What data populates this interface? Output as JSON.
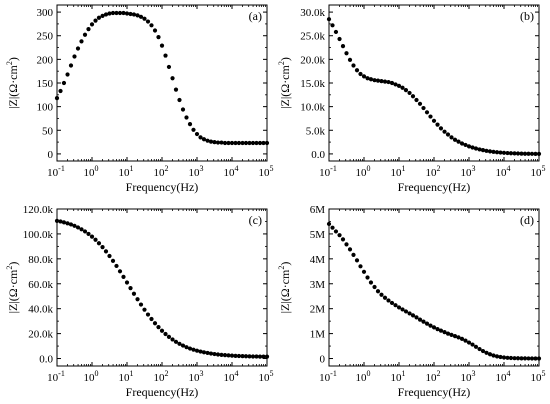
{
  "chart_data": [
    {
      "type": "scatter",
      "panel_label": "(a)",
      "xlabel": "Frequency(Hz)",
      "ylabel_main": "|Z|(Ω·cm",
      "ylabel_sup": "2",
      "ylabel_tail": ")",
      "x_scale": "log",
      "xlim": [
        0.1,
        100000
      ],
      "ylim": [
        -15,
        315
      ],
      "x_tick_values": [
        0.1,
        1,
        10,
        100,
        1000,
        10000,
        100000
      ],
      "x_tick_labels": [
        [
          "10",
          "-1"
        ],
        [
          "10",
          "0"
        ],
        [
          "10",
          "1"
        ],
        [
          "10",
          "2"
        ],
        [
          "10",
          "3"
        ],
        [
          "10",
          "4"
        ],
        [
          "10",
          "5"
        ]
      ],
      "y_tick_values": [
        0,
        50,
        100,
        150,
        200,
        250,
        300
      ],
      "y_tick_labels": [
        "0",
        "50",
        "100",
        "150",
        "200",
        "250",
        "300"
      ],
      "series": [
        {
          "x": [
            0.1,
            0.126,
            0.158,
            0.2,
            0.251,
            0.316,
            0.398,
            0.501,
            0.631,
            0.794,
            1,
            1.26,
            1.58,
            2,
            2.51,
            3.16,
            3.98,
            5.01,
            6.31,
            7.94,
            10,
            12.6,
            15.8,
            20,
            25.1,
            31.6,
            39.8,
            50.1,
            63.1,
            79.4,
            100,
            126,
            158,
            200,
            251,
            316,
            398,
            501,
            631,
            794,
            1000,
            1260,
            1580,
            2000,
            2510,
            3160,
            3980,
            5010,
            6310,
            7940,
            10000,
            12600,
            15800,
            20000,
            25100,
            31600,
            39800,
            50100,
            63100,
            79400,
            100000
          ],
          "y": [
            118,
            133,
            150,
            168,
            187,
            206,
            223,
            238,
            252,
            264,
            274,
            282,
            288,
            292,
            295,
            297,
            298,
            298,
            298,
            298,
            297,
            296,
            295,
            293,
            290,
            286,
            280,
            272,
            261,
            247,
            229,
            208,
            184,
            160,
            136,
            114,
            94,
            77,
            63,
            51,
            42,
            35,
            31,
            28,
            26,
            25,
            24,
            24,
            23,
            23,
            23,
            23,
            23,
            23,
            23,
            23,
            23,
            23,
            23,
            23,
            23
          ]
        }
      ]
    },
    {
      "type": "scatter",
      "panel_label": "(b)",
      "xlabel": "Frequency(Hz)",
      "ylabel_main": "|Z|(Ω·cm",
      "ylabel_sup": "2",
      "ylabel_tail": ")",
      "x_scale": "log",
      "xlim": [
        0.1,
        100000
      ],
      "ylim": [
        -1500,
        31500
      ],
      "x_tick_values": [
        0.1,
        1,
        10,
        100,
        1000,
        10000,
        100000
      ],
      "x_tick_labels": [
        [
          "10",
          "-1"
        ],
        [
          "10",
          "0"
        ],
        [
          "10",
          "1"
        ],
        [
          "10",
          "2"
        ],
        [
          "10",
          "3"
        ],
        [
          "10",
          "4"
        ],
        [
          "10",
          "5"
        ]
      ],
      "y_tick_values": [
        0,
        5000,
        10000,
        15000,
        20000,
        25000,
        30000
      ],
      "y_tick_labels": [
        "0.0",
        "5.0k",
        "10.0k",
        "15.0k",
        "20.0k",
        "25.0k",
        "30.0k"
      ],
      "series": [
        {
          "x": [
            0.1,
            0.126,
            0.158,
            0.2,
            0.251,
            0.316,
            0.398,
            0.501,
            0.631,
            0.794,
            1,
            1.26,
            1.58,
            2,
            2.51,
            3.16,
            3.98,
            5.01,
            6.31,
            7.94,
            10,
            12.6,
            15.8,
            20,
            25.1,
            31.6,
            39.8,
            50.1,
            63.1,
            79.4,
            100,
            126,
            158,
            200,
            251,
            316,
            398,
            501,
            631,
            794,
            1000,
            1260,
            1580,
            2000,
            2510,
            3160,
            3980,
            5010,
            6310,
            7940,
            10000,
            12600,
            15800,
            20000,
            25100,
            31600,
            39800,
            50100,
            63100,
            79400,
            100000
          ],
          "y": [
            28500,
            27200,
            25800,
            24300,
            22800,
            21300,
            19900,
            18700,
            17700,
            16900,
            16400,
            16000,
            15800,
            15600,
            15500,
            15400,
            15300,
            15200,
            15000,
            14700,
            14400,
            14000,
            13500,
            12900,
            12200,
            11400,
            10600,
            9700,
            8800,
            7900,
            7000,
            6200,
            5400,
            4700,
            4100,
            3500,
            3000,
            2600,
            2200,
            1900,
            1600,
            1350,
            1150,
            950,
            800,
            650,
            540,
            440,
            360,
            290,
            230,
            180,
            140,
            110,
            80,
            60,
            40,
            30,
            20,
            10,
            0
          ]
        }
      ]
    },
    {
      "type": "scatter",
      "panel_label": "(c)",
      "xlabel": "Frequency(Hz)",
      "ylabel_main": "|Z|(Ω·cm",
      "ylabel_sup": "2",
      "ylabel_tail": ")",
      "x_scale": "log",
      "xlim": [
        0.1,
        100000
      ],
      "ylim": [
        -6000,
        120000
      ],
      "x_tick_values": [
        0.1,
        1,
        10,
        100,
        1000,
        10000,
        100000
      ],
      "x_tick_labels": [
        [
          "10",
          "-1"
        ],
        [
          "10",
          "0"
        ],
        [
          "10",
          "1"
        ],
        [
          "10",
          "2"
        ],
        [
          "10",
          "3"
        ],
        [
          "10",
          "4"
        ],
        [
          "10",
          "5"
        ]
      ],
      "y_tick_values": [
        0,
        20000,
        40000,
        60000,
        80000,
        100000,
        120000
      ],
      "y_tick_labels": [
        "0.0",
        "20.0k",
        "40.0k",
        "60.0k",
        "80.0k",
        "100.0k",
        "120.0k"
      ],
      "series": [
        {
          "x": [
            0.1,
            0.126,
            0.158,
            0.2,
            0.251,
            0.316,
            0.398,
            0.501,
            0.631,
            0.794,
            1,
            1.26,
            1.58,
            2,
            2.51,
            3.16,
            3.98,
            5.01,
            6.31,
            7.94,
            10,
            12.6,
            15.8,
            20,
            25.1,
            31.6,
            39.8,
            50.1,
            63.1,
            79.4,
            100,
            126,
            158,
            200,
            251,
            316,
            398,
            501,
            631,
            794,
            1000,
            1260,
            1580,
            2000,
            2510,
            3160,
            3980,
            5010,
            6310,
            7940,
            10000,
            12600,
            15800,
            20000,
            25100,
            31600,
            39800,
            50100,
            63100,
            79400,
            100000
          ],
          "y": [
            110500,
            110000,
            109300,
            108500,
            107600,
            106500,
            105200,
            103700,
            102000,
            100000,
            97800,
            95300,
            92500,
            89400,
            86000,
            82300,
            78400,
            74300,
            70000,
            65500,
            61000,
            56500,
            52000,
            47600,
            43300,
            39200,
            35300,
            31700,
            28300,
            25200,
            22300,
            19700,
            17400,
            15300,
            13400,
            11800,
            10400,
            9100,
            8000,
            7100,
            6300,
            5600,
            5000,
            4500,
            4000,
            3600,
            3250,
            2950,
            2700,
            2500,
            2300,
            2150,
            2000,
            1900,
            1800,
            1700,
            1650,
            1600,
            1550,
            1500,
            1500
          ]
        }
      ]
    },
    {
      "type": "scatter",
      "panel_label": "(d)",
      "xlabel": "Frequency(Hz)",
      "ylabel_main": "|Z|(Ω·cm",
      "ylabel_sup": "2",
      "ylabel_tail": ")",
      "x_scale": "log",
      "xlim": [
        0.1,
        100000
      ],
      "ylim": [
        -300000,
        6000000
      ],
      "x_tick_values": [
        0.1,
        1,
        10,
        100,
        1000,
        10000,
        100000
      ],
      "x_tick_labels": [
        [
          "10",
          "-1"
        ],
        [
          "10",
          "0"
        ],
        [
          "10",
          "1"
        ],
        [
          "10",
          "2"
        ],
        [
          "10",
          "3"
        ],
        [
          "10",
          "4"
        ],
        [
          "10",
          "5"
        ]
      ],
      "y_tick_values": [
        0,
        1000000,
        2000000,
        3000000,
        4000000,
        5000000,
        6000000
      ],
      "y_tick_labels": [
        "0",
        "1M",
        "2M",
        "3M",
        "4M",
        "5M",
        "6M"
      ],
      "series": [
        {
          "x": [
            0.1,
            0.126,
            0.158,
            0.2,
            0.251,
            0.316,
            0.398,
            0.501,
            0.631,
            0.794,
            1,
            1.26,
            1.58,
            2,
            2.51,
            3.16,
            3.98,
            5.01,
            6.31,
            7.94,
            10,
            12.6,
            15.8,
            20,
            25.1,
            31.6,
            39.8,
            50.1,
            63.1,
            79.4,
            100,
            126,
            158,
            200,
            251,
            316,
            398,
            501,
            631,
            794,
            1000,
            1260,
            1580,
            2000,
            2510,
            3160,
            3980,
            5010,
            6310,
            7940,
            10000,
            12600,
            15800,
            20000,
            25100,
            31600,
            39800,
            50100,
            63100,
            79400,
            100000
          ],
          "y": [
            5400000,
            5250000,
            5100000,
            4950000,
            4780000,
            4580000,
            4380000,
            4160000,
            3940000,
            3700000,
            3480000,
            3250000,
            3050000,
            2870000,
            2700000,
            2560000,
            2440000,
            2330000,
            2230000,
            2140000,
            2050000,
            1970000,
            1890000,
            1810000,
            1730000,
            1650000,
            1560000,
            1480000,
            1400000,
            1320000,
            1250000,
            1180000,
            1120000,
            1060000,
            1000000,
            950000,
            900000,
            850000,
            790000,
            720000,
            640000,
            560000,
            470000,
            380000,
            300000,
            230000,
            170000,
            120000,
            85000,
            60000,
            40000,
            28000,
            20000,
            14000,
            10000,
            7000,
            5000,
            3500,
            2500,
            1800,
            1200
          ]
        }
      ]
    }
  ]
}
